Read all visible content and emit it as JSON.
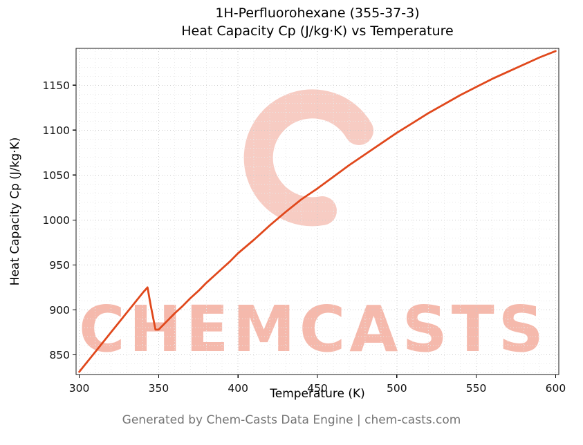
{
  "chart": {
    "title_line1": "1H-Perfluorohexane (355-37-3)",
    "title_line2": "Heat Capacity Cp (J/kg·K) vs Temperature",
    "xlabel": "Temperature (K)",
    "ylabel": "Heat Capacity Cp (J/kg·K)"
  },
  "watermark": {
    "text": "CHEMCASTS",
    "text_color": "#F4B2A4",
    "logo_color": "#F0A292"
  },
  "footer": {
    "text": "Generated by Chem-Casts Data Engine | chem-casts.com"
  },
  "chart_data": {
    "type": "line",
    "title": "1H-Perfluorohexane (355-37-3) Heat Capacity Cp (J/kg·K) vs Temperature",
    "xlabel": "Temperature (K)",
    "ylabel": "Heat Capacity Cp (J/kg·K)",
    "xlim": [
      298,
      602
    ],
    "ylim": [
      828,
      1191
    ],
    "xticks": [
      300,
      350,
      400,
      450,
      500,
      550,
      600
    ],
    "yticks": [
      850,
      900,
      950,
      1000,
      1050,
      1100,
      1150
    ],
    "minor_step_x": 10,
    "minor_step_y": 10,
    "grid": true,
    "legend": false,
    "line_color": "#E0481C",
    "major_grid_color": "#c9c9c9",
    "minor_grid_color": "#e9e9e9",
    "series": [
      {
        "name": "Heat Capacity Cp",
        "x": [
          300,
          305,
          310,
          315,
          320,
          325,
          330,
          335,
          340,
          343,
          345,
          348,
          350,
          355,
          360,
          365,
          370,
          375,
          380,
          385,
          390,
          395,
          400,
          410,
          420,
          430,
          440,
          450,
          460,
          470,
          480,
          490,
          500,
          510,
          520,
          530,
          540,
          550,
          560,
          570,
          580,
          590,
          600
        ],
        "y": [
          831,
          842,
          853,
          864,
          875,
          886,
          897,
          908,
          919,
          925,
          905,
          878,
          878,
          887,
          896,
          904,
          913,
          921,
          930,
          938,
          946,
          954,
          963,
          978,
          994,
          1009,
          1023,
          1035,
          1048,
          1061,
          1073,
          1085,
          1097,
          1108,
          1119,
          1129,
          1139,
          1148,
          1157,
          1165,
          1173,
          1181,
          1188
        ]
      }
    ]
  }
}
